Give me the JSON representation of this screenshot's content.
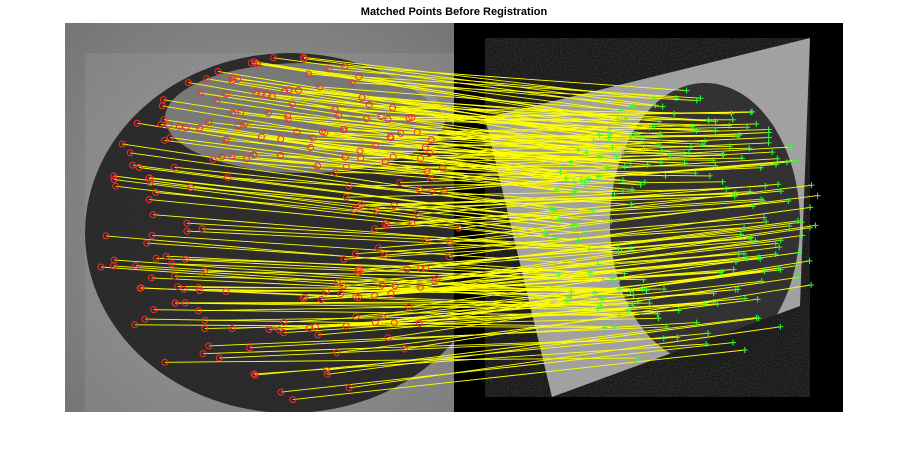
{
  "figure": {
    "title": "Matched Points Before Registration"
  },
  "colors": {
    "background": "#ffffff",
    "left_image_fill": "#8c8c8c",
    "right_image_fill": "#000000",
    "warped_image_fill": "#a8a8a8",
    "match_line": "#ffff00",
    "left_marker": "#ff2a2a",
    "right_marker": "#33ff33",
    "dark_region": "#1e1e1e"
  },
  "markers": {
    "left_symbol": "circle",
    "right_symbol": "plus"
  }
}
